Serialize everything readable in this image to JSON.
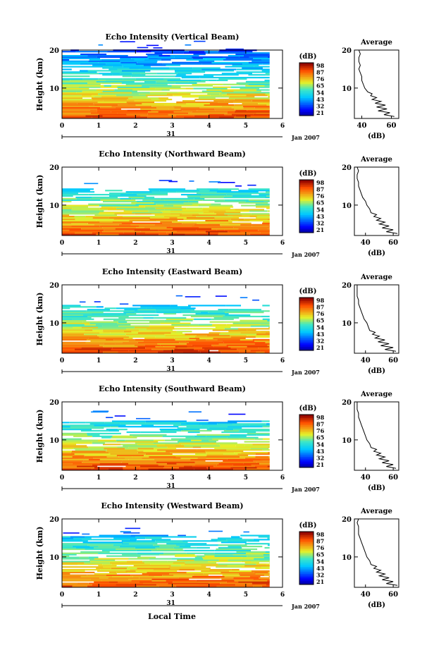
{
  "chart_data": {
    "type": "heatmap",
    "xlabel": "Local Time",
    "date_label": "Jan 2007",
    "day_label": "31",
    "xlim": [
      0,
      6
    ],
    "x_ticks": [
      "0",
      "1",
      "2",
      "3",
      "4",
      "5",
      "6"
    ],
    "ylabel": "Height (km)",
    "ylim": [
      2,
      20
    ],
    "y_ticks": [
      "10",
      "20"
    ],
    "colorbar": {
      "label": "(dB)",
      "ticks": [
        "98",
        "87",
        "76",
        "65",
        "54",
        "43",
        "32",
        "21"
      ],
      "range": [
        21,
        98
      ]
    },
    "average_title": "Average",
    "average_xlabel": "(dB)",
    "panels": [
      {
        "title": "Echo Intensity (Vertical Beam)",
        "cover_top_km": 20.0,
        "x_end": 5.65,
        "avg_x_ticks": [
          "40",
          "60"
        ],
        "avg_xlim": [
          35,
          65
        ],
        "average_profile": [
          [
            2.5,
            62
          ],
          [
            3,
            55
          ],
          [
            3.5,
            59
          ],
          [
            4,
            51
          ],
          [
            4.5,
            57
          ],
          [
            5,
            50
          ],
          [
            5.5,
            56
          ],
          [
            6,
            49
          ],
          [
            6.5,
            53
          ],
          [
            7,
            47
          ],
          [
            7.5,
            50
          ],
          [
            8,
            46
          ],
          [
            8.5,
            47
          ],
          [
            9,
            44
          ],
          [
            10,
            42
          ],
          [
            11,
            41
          ],
          [
            12,
            40
          ],
          [
            13,
            40
          ],
          [
            14,
            39
          ],
          [
            15,
            38
          ],
          [
            16,
            39
          ],
          [
            17,
            38
          ],
          [
            18,
            38
          ],
          [
            19,
            39
          ],
          [
            20,
            38
          ]
        ]
      },
      {
        "title": "Echo Intensity (Northward Beam)",
        "cover_top_km": 14.0,
        "x_end": 5.65,
        "avg_x_ticks": [
          "40",
          "60"
        ],
        "avg_xlim": [
          32,
          64
        ],
        "average_profile": [
          [
            2.5,
            63
          ],
          [
            3,
            55
          ],
          [
            3.5,
            60
          ],
          [
            4,
            52
          ],
          [
            4.5,
            57
          ],
          [
            5,
            50
          ],
          [
            5.5,
            54
          ],
          [
            6,
            48
          ],
          [
            6.5,
            51
          ],
          [
            7,
            46
          ],
          [
            7.5,
            48
          ],
          [
            8,
            44
          ],
          [
            9,
            43
          ],
          [
            10,
            41
          ],
          [
            11,
            40
          ],
          [
            12,
            38
          ],
          [
            13,
            37
          ],
          [
            14,
            36
          ],
          [
            15,
            35
          ],
          [
            16,
            35
          ],
          [
            17,
            34
          ],
          [
            18,
            34
          ],
          [
            19,
            35
          ],
          [
            20,
            34
          ]
        ]
      },
      {
        "title": "Echo Intensity (Eastward Beam)",
        "cover_top_km": 14.5,
        "x_end": 5.65,
        "avg_x_ticks": [
          "40",
          "60"
        ],
        "avg_xlim": [
          32,
          64
        ],
        "average_profile": [
          [
            2.5,
            62
          ],
          [
            3,
            54
          ],
          [
            3.5,
            60
          ],
          [
            4,
            51
          ],
          [
            4.5,
            57
          ],
          [
            5,
            49
          ],
          [
            5.5,
            54
          ],
          [
            6,
            47
          ],
          [
            6.5,
            50
          ],
          [
            7,
            45
          ],
          [
            7.5,
            47
          ],
          [
            8,
            43
          ],
          [
            9,
            42
          ],
          [
            10,
            41
          ],
          [
            11,
            39
          ],
          [
            12,
            38
          ],
          [
            13,
            37
          ],
          [
            14,
            36
          ],
          [
            15,
            35
          ],
          [
            16,
            35
          ],
          [
            17,
            34
          ],
          [
            18,
            34
          ],
          [
            19,
            34
          ],
          [
            20,
            34
          ]
        ]
      },
      {
        "title": "Echo Intensity (Southward Beam)",
        "cover_top_km": 15.0,
        "x_end": 5.65,
        "avg_x_ticks": [
          "40",
          "60"
        ],
        "avg_xlim": [
          32,
          64
        ],
        "average_profile": [
          [
            2.5,
            62
          ],
          [
            3,
            55
          ],
          [
            3.5,
            60
          ],
          [
            4,
            52
          ],
          [
            4.5,
            57
          ],
          [
            5,
            50
          ],
          [
            5.5,
            54
          ],
          [
            6,
            48
          ],
          [
            6.5,
            51
          ],
          [
            7,
            46
          ],
          [
            7.5,
            48
          ],
          [
            8,
            44
          ],
          [
            9,
            43
          ],
          [
            10,
            41
          ],
          [
            11,
            40
          ],
          [
            12,
            39
          ],
          [
            13,
            38
          ],
          [
            14,
            37
          ],
          [
            15,
            36
          ],
          [
            16,
            35
          ],
          [
            17,
            35
          ],
          [
            18,
            34
          ],
          [
            19,
            34
          ],
          [
            20,
            34
          ]
        ]
      },
      {
        "title": "Echo Intensity (Westward Beam)",
        "cover_top_km": 15.5,
        "x_end": 5.65,
        "avg_x_ticks": [
          "40",
          "60"
        ],
        "avg_xlim": [
          32,
          64
        ],
        "average_profile": [
          [
            2.5,
            63
          ],
          [
            3,
            55
          ],
          [
            3.5,
            60
          ],
          [
            4,
            52
          ],
          [
            4.5,
            57
          ],
          [
            5,
            50
          ],
          [
            5.5,
            54
          ],
          [
            6,
            48
          ],
          [
            6.5,
            51
          ],
          [
            7,
            46
          ],
          [
            7.5,
            48
          ],
          [
            8,
            44
          ],
          [
            9,
            43
          ],
          [
            10,
            41
          ],
          [
            11,
            40
          ],
          [
            12,
            39
          ],
          [
            13,
            38
          ],
          [
            14,
            37
          ],
          [
            15,
            36
          ],
          [
            16,
            35
          ],
          [
            17,
            35
          ],
          [
            18,
            35
          ],
          [
            19,
            34
          ],
          [
            20,
            35
          ]
        ]
      }
    ]
  }
}
